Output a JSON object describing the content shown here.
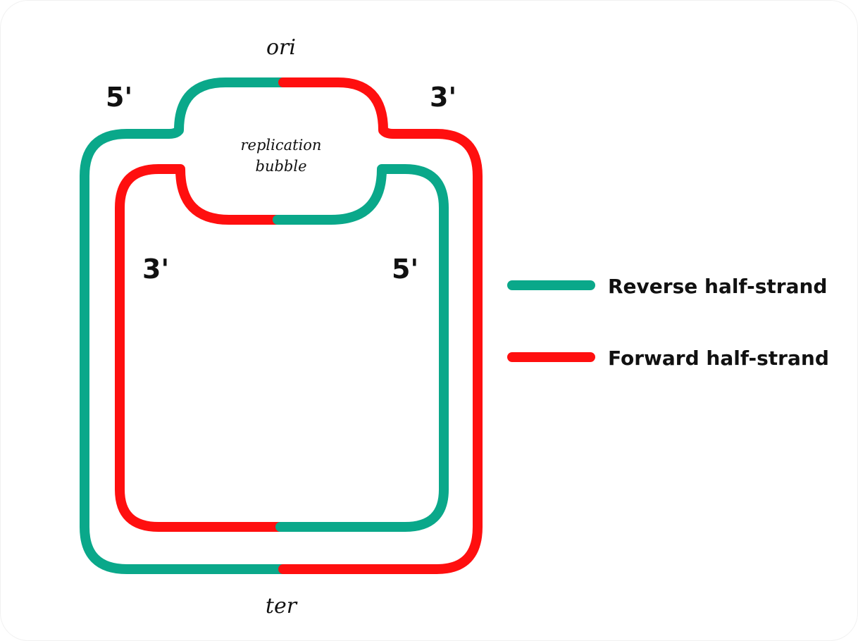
{
  "labels": {
    "ori": "ori",
    "ter": "ter",
    "bubble_line1": "replication",
    "bubble_line2": "bubble",
    "outer_left_end": "5'",
    "outer_right_end": "3'",
    "inner_left_end": "3'",
    "inner_right_end": "5'"
  },
  "legend": [
    {
      "label": "Reverse half-strand",
      "color": "#0aa88a"
    },
    {
      "label": "Forward half-strand",
      "color": "#ff0f0f"
    }
  ],
  "colors": {
    "reverse": "#0aa88a",
    "forward": "#ff0f0f",
    "text": "#111111",
    "background": "#ffffff"
  }
}
